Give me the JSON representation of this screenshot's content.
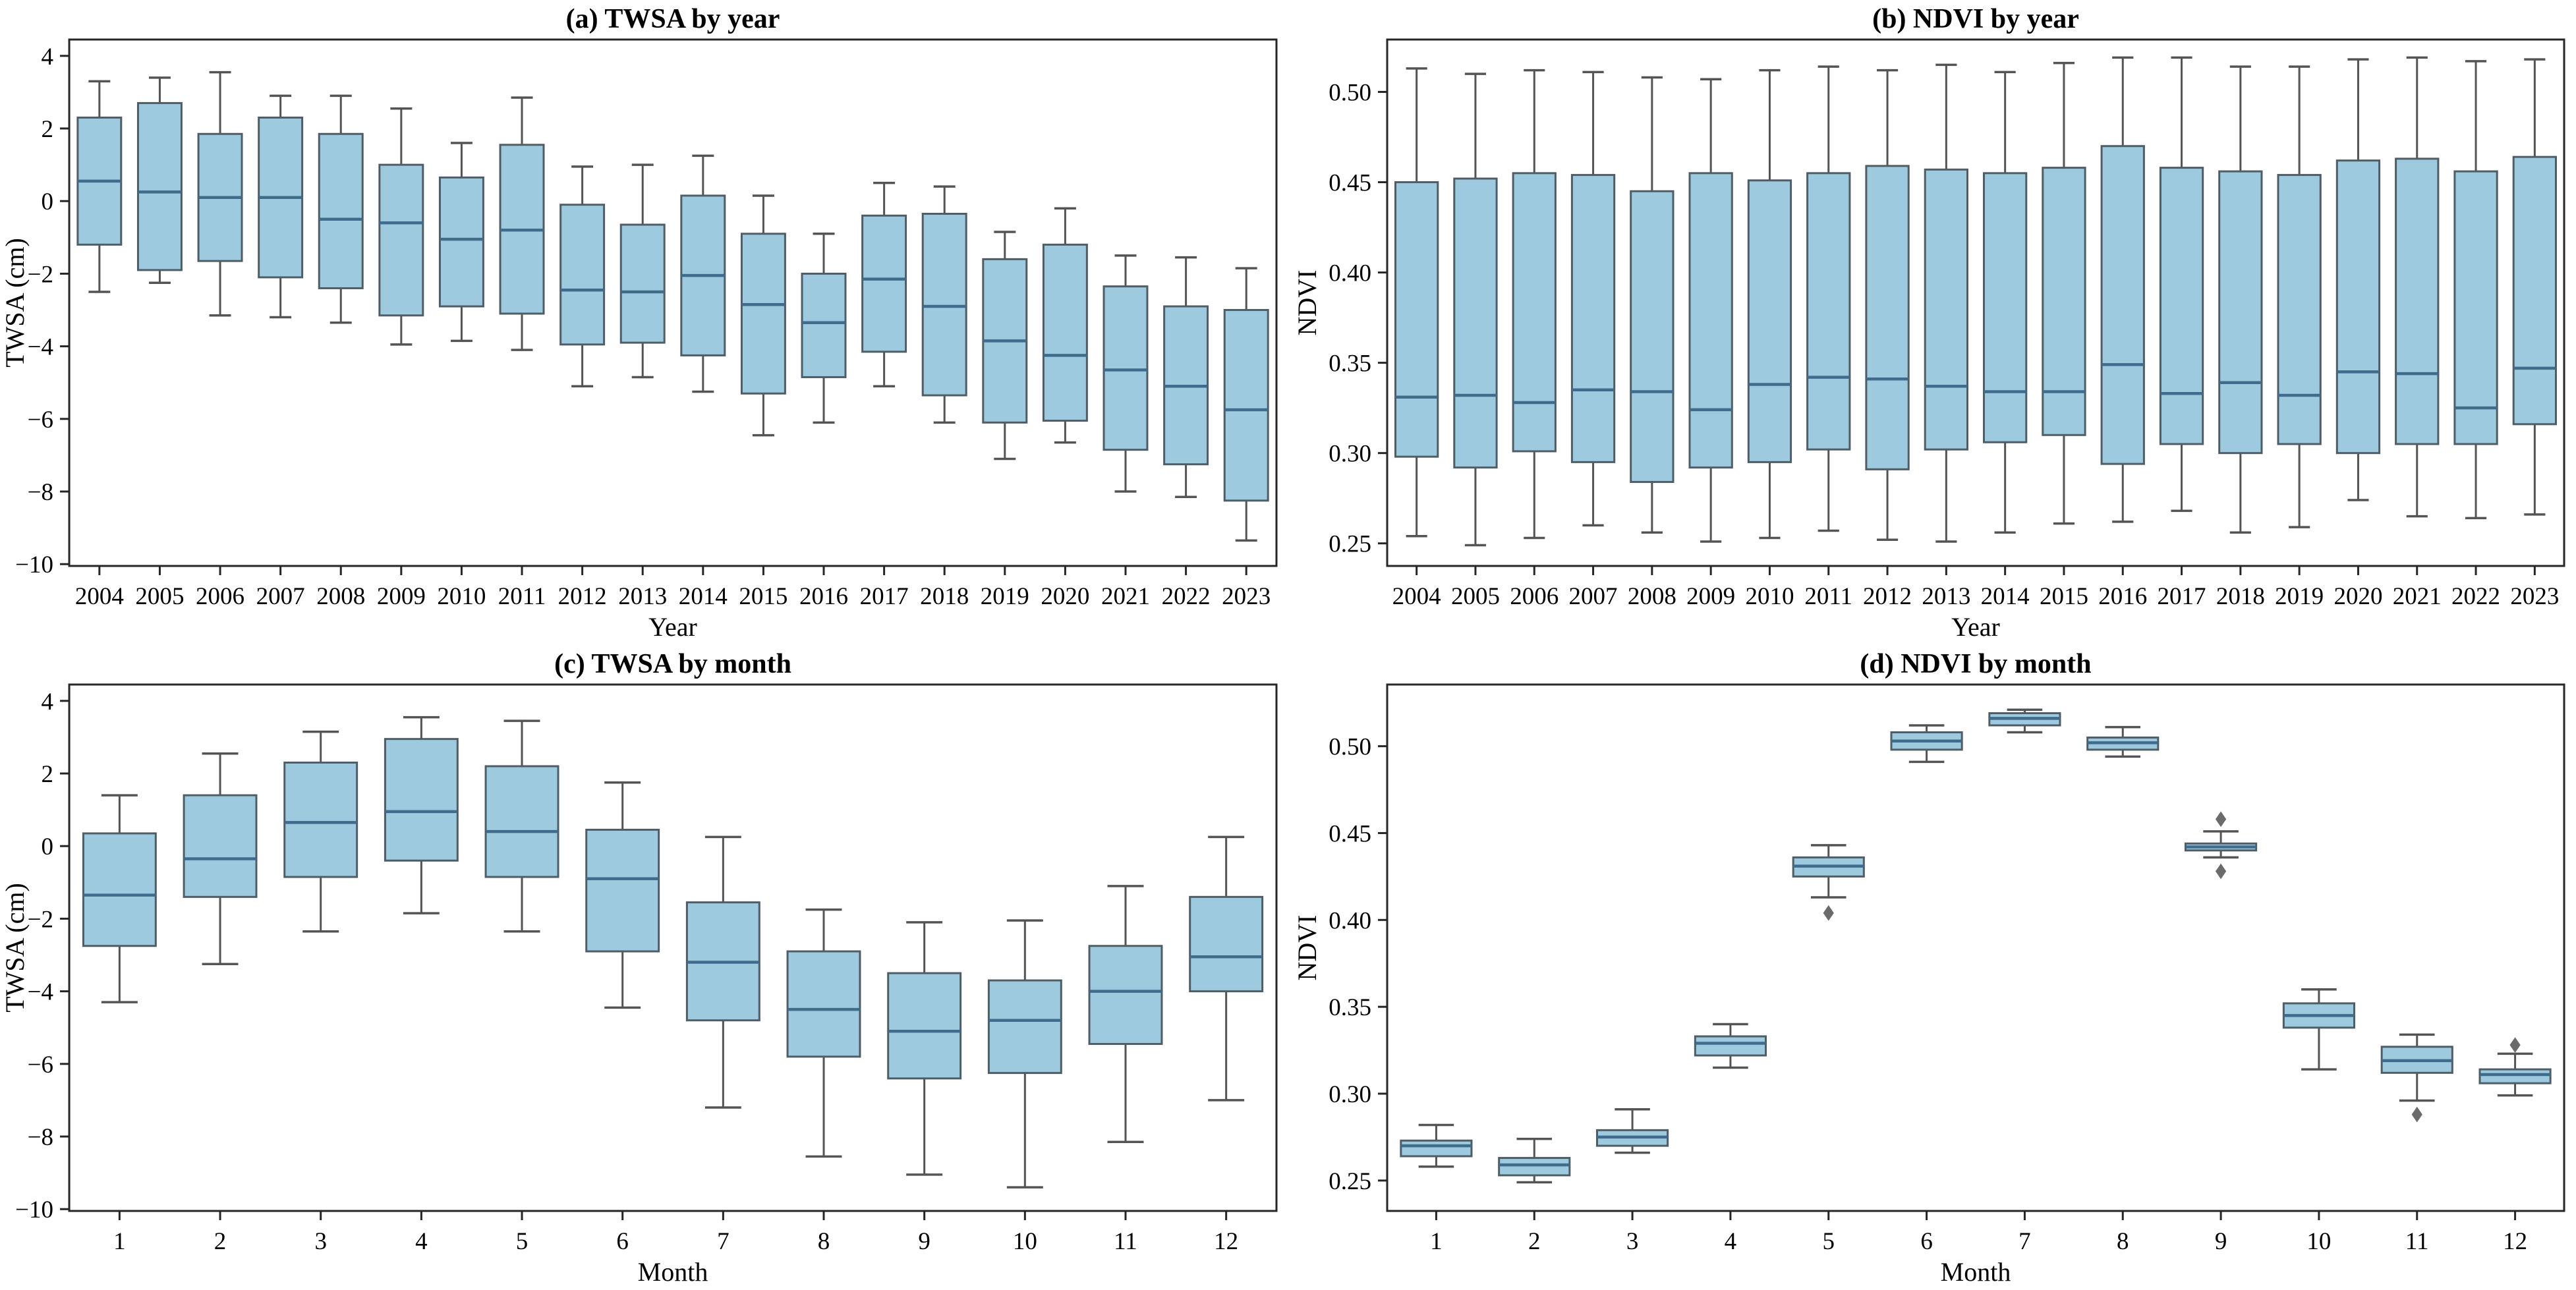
{
  "figure": {
    "background": "#ffffff"
  },
  "colors": {
    "box_fill": "#9ecadf",
    "box_edge": "#4f5d66",
    "median": "#3f6c8d",
    "whisker": "#545454",
    "flier": "#6b6b6b",
    "spine": "#262626",
    "text": "#000000"
  },
  "chart_data": [
    {
      "id": "a",
      "type": "box",
      "title": "(a) TWSA by year",
      "xlabel": "Year",
      "ylabel": "TWSA (cm)",
      "categories": [
        "2004",
        "2005",
        "2006",
        "2007",
        "2008",
        "2009",
        "2010",
        "2011",
        "2012",
        "2013",
        "2014",
        "2015",
        "2016",
        "2017",
        "2018",
        "2019",
        "2020",
        "2021",
        "2022",
        "2023"
      ],
      "ylim": [
        -10.05,
        4.45
      ],
      "yticks": [
        {
          "v": 4,
          "label": "4"
        },
        {
          "v": 2,
          "label": "2"
        },
        {
          "v": 0,
          "label": "0"
        },
        {
          "v": -2,
          "label": "−2"
        },
        {
          "v": -4,
          "label": "−4"
        },
        {
          "v": -6,
          "label": "−6"
        },
        {
          "v": -8,
          "label": "−8"
        },
        {
          "v": -10,
          "label": "−10"
        }
      ],
      "boxes": [
        {
          "whislo": -2.5,
          "q1": -1.2,
          "med": 0.55,
          "q3": 2.3,
          "whishi": 3.3,
          "fliers": []
        },
        {
          "whislo": -2.25,
          "q1": -1.9,
          "med": 0.25,
          "q3": 2.7,
          "whishi": 3.4,
          "fliers": []
        },
        {
          "whislo": -3.15,
          "q1": -1.65,
          "med": 0.1,
          "q3": 1.85,
          "whishi": 3.55,
          "fliers": []
        },
        {
          "whislo": -3.2,
          "q1": -2.1,
          "med": 0.1,
          "q3": 2.3,
          "whishi": 2.9,
          "fliers": []
        },
        {
          "whislo": -3.35,
          "q1": -2.4,
          "med": -0.5,
          "q3": 1.85,
          "whishi": 2.9,
          "fliers": []
        },
        {
          "whislo": -3.95,
          "q1": -3.15,
          "med": -0.6,
          "q3": 1.0,
          "whishi": 2.55,
          "fliers": []
        },
        {
          "whislo": -3.85,
          "q1": -2.9,
          "med": -1.05,
          "q3": 0.65,
          "whishi": 1.6,
          "fliers": []
        },
        {
          "whislo": -4.1,
          "q1": -3.1,
          "med": -0.8,
          "q3": 1.55,
          "whishi": 2.85,
          "fliers": []
        },
        {
          "whislo": -5.1,
          "q1": -3.95,
          "med": -2.45,
          "q3": -0.1,
          "whishi": 0.95,
          "fliers": []
        },
        {
          "whislo": -4.85,
          "q1": -3.9,
          "med": -2.5,
          "q3": -0.65,
          "whishi": 1.0,
          "fliers": []
        },
        {
          "whislo": -5.25,
          "q1": -4.25,
          "med": -2.05,
          "q3": 0.15,
          "whishi": 1.25,
          "fliers": []
        },
        {
          "whislo": -6.45,
          "q1": -5.3,
          "med": -2.85,
          "q3": -0.9,
          "whishi": 0.15,
          "fliers": []
        },
        {
          "whislo": -6.1,
          "q1": -4.85,
          "med": -3.35,
          "q3": -2.0,
          "whishi": -0.9,
          "fliers": []
        },
        {
          "whislo": -5.1,
          "q1": -4.15,
          "med": -2.15,
          "q3": -0.4,
          "whishi": 0.5,
          "fliers": []
        },
        {
          "whislo": -6.1,
          "q1": -5.35,
          "med": -2.9,
          "q3": -0.35,
          "whishi": 0.4,
          "fliers": []
        },
        {
          "whislo": -7.1,
          "q1": -6.1,
          "med": -3.85,
          "q3": -1.6,
          "whishi": -0.85,
          "fliers": []
        },
        {
          "whislo": -6.65,
          "q1": -6.05,
          "med": -4.25,
          "q3": -1.2,
          "whishi": -0.2,
          "fliers": []
        },
        {
          "whislo": -8.0,
          "q1": -6.85,
          "med": -4.65,
          "q3": -2.35,
          "whishi": -1.5,
          "fliers": []
        },
        {
          "whislo": -8.15,
          "q1": -7.25,
          "med": -5.1,
          "q3": -2.9,
          "whishi": -1.55,
          "fliers": []
        },
        {
          "whislo": -9.35,
          "q1": -8.25,
          "med": -5.75,
          "q3": -3.0,
          "whishi": -1.85,
          "fliers": []
        }
      ]
    },
    {
      "id": "b",
      "type": "box",
      "title": "(b) NDVI by year",
      "xlabel": "Year",
      "ylabel": "NDVI",
      "categories": [
        "2004",
        "2005",
        "2006",
        "2007",
        "2008",
        "2009",
        "2010",
        "2011",
        "2012",
        "2013",
        "2014",
        "2015",
        "2016",
        "2017",
        "2018",
        "2019",
        "2020",
        "2021",
        "2022",
        "2023"
      ],
      "ylim": [
        0.2375,
        0.529
      ],
      "yticks": [
        {
          "v": 0.5,
          "label": "0.50"
        },
        {
          "v": 0.45,
          "label": "0.45"
        },
        {
          "v": 0.4,
          "label": "0.40"
        },
        {
          "v": 0.35,
          "label": "0.35"
        },
        {
          "v": 0.3,
          "label": "0.30"
        },
        {
          "v": 0.25,
          "label": "0.25"
        }
      ],
      "boxes": [
        {
          "whislo": 0.254,
          "q1": 0.298,
          "med": 0.331,
          "q3": 0.45,
          "whishi": 0.513,
          "fliers": []
        },
        {
          "whislo": 0.249,
          "q1": 0.292,
          "med": 0.332,
          "q3": 0.452,
          "whishi": 0.51,
          "fliers": []
        },
        {
          "whislo": 0.253,
          "q1": 0.301,
          "med": 0.328,
          "q3": 0.455,
          "whishi": 0.512,
          "fliers": []
        },
        {
          "whislo": 0.26,
          "q1": 0.295,
          "med": 0.335,
          "q3": 0.454,
          "whishi": 0.511,
          "fliers": []
        },
        {
          "whislo": 0.256,
          "q1": 0.284,
          "med": 0.334,
          "q3": 0.445,
          "whishi": 0.508,
          "fliers": []
        },
        {
          "whislo": 0.251,
          "q1": 0.292,
          "med": 0.324,
          "q3": 0.455,
          "whishi": 0.507,
          "fliers": []
        },
        {
          "whislo": 0.253,
          "q1": 0.295,
          "med": 0.338,
          "q3": 0.451,
          "whishi": 0.512,
          "fliers": []
        },
        {
          "whislo": 0.257,
          "q1": 0.302,
          "med": 0.342,
          "q3": 0.455,
          "whishi": 0.514,
          "fliers": []
        },
        {
          "whislo": 0.252,
          "q1": 0.291,
          "med": 0.341,
          "q3": 0.459,
          "whishi": 0.512,
          "fliers": []
        },
        {
          "whislo": 0.251,
          "q1": 0.302,
          "med": 0.337,
          "q3": 0.457,
          "whishi": 0.515,
          "fliers": []
        },
        {
          "whislo": 0.256,
          "q1": 0.306,
          "med": 0.334,
          "q3": 0.455,
          "whishi": 0.511,
          "fliers": []
        },
        {
          "whislo": 0.261,
          "q1": 0.31,
          "med": 0.334,
          "q3": 0.458,
          "whishi": 0.516,
          "fliers": []
        },
        {
          "whislo": 0.262,
          "q1": 0.294,
          "med": 0.349,
          "q3": 0.47,
          "whishi": 0.519,
          "fliers": []
        },
        {
          "whislo": 0.268,
          "q1": 0.305,
          "med": 0.333,
          "q3": 0.458,
          "whishi": 0.519,
          "fliers": []
        },
        {
          "whislo": 0.256,
          "q1": 0.3,
          "med": 0.339,
          "q3": 0.456,
          "whishi": 0.514,
          "fliers": []
        },
        {
          "whislo": 0.259,
          "q1": 0.305,
          "med": 0.332,
          "q3": 0.454,
          "whishi": 0.514,
          "fliers": []
        },
        {
          "whislo": 0.274,
          "q1": 0.3,
          "med": 0.345,
          "q3": 0.462,
          "whishi": 0.518,
          "fliers": []
        },
        {
          "whislo": 0.265,
          "q1": 0.305,
          "med": 0.344,
          "q3": 0.463,
          "whishi": 0.519,
          "fliers": []
        },
        {
          "whislo": 0.264,
          "q1": 0.305,
          "med": 0.325,
          "q3": 0.456,
          "whishi": 0.517,
          "fliers": []
        },
        {
          "whislo": 0.266,
          "q1": 0.316,
          "med": 0.347,
          "q3": 0.464,
          "whishi": 0.518,
          "fliers": []
        }
      ]
    },
    {
      "id": "c",
      "type": "box",
      "title": "(c) TWSA by month",
      "xlabel": "Month",
      "ylabel": "TWSA (cm)",
      "categories": [
        "1",
        "2",
        "3",
        "4",
        "5",
        "6",
        "7",
        "8",
        "9",
        "10",
        "11",
        "12"
      ],
      "ylim": [
        -10.05,
        4.45
      ],
      "yticks": [
        {
          "v": 4,
          "label": "4"
        },
        {
          "v": 2,
          "label": "2"
        },
        {
          "v": 0,
          "label": "0"
        },
        {
          "v": -2,
          "label": "−2"
        },
        {
          "v": -4,
          "label": "−4"
        },
        {
          "v": -6,
          "label": "−6"
        },
        {
          "v": -8,
          "label": "−8"
        },
        {
          "v": -10,
          "label": "−10"
        }
      ],
      "boxes": [
        {
          "whislo": -4.3,
          "q1": -2.75,
          "med": -1.35,
          "q3": 0.35,
          "whishi": 1.4,
          "fliers": []
        },
        {
          "whislo": -3.25,
          "q1": -1.4,
          "med": -0.35,
          "q3": 1.4,
          "whishi": 2.55,
          "fliers": []
        },
        {
          "whislo": -2.35,
          "q1": -0.85,
          "med": 0.65,
          "q3": 2.3,
          "whishi": 3.15,
          "fliers": []
        },
        {
          "whislo": -1.85,
          "q1": -0.4,
          "med": 0.95,
          "q3": 2.95,
          "whishi": 3.55,
          "fliers": []
        },
        {
          "whislo": -2.35,
          "q1": -0.85,
          "med": 0.4,
          "q3": 2.2,
          "whishi": 3.45,
          "fliers": []
        },
        {
          "whislo": -4.45,
          "q1": -2.9,
          "med": -0.9,
          "q3": 0.45,
          "whishi": 1.75,
          "fliers": []
        },
        {
          "whislo": -7.2,
          "q1": -4.8,
          "med": -3.2,
          "q3": -1.55,
          "whishi": 0.25,
          "fliers": []
        },
        {
          "whislo": -8.55,
          "q1": -5.8,
          "med": -4.5,
          "q3": -2.9,
          "whishi": -1.75,
          "fliers": []
        },
        {
          "whislo": -9.05,
          "q1": -6.4,
          "med": -5.1,
          "q3": -3.5,
          "whishi": -2.1,
          "fliers": []
        },
        {
          "whislo": -9.4,
          "q1": -6.25,
          "med": -4.8,
          "q3": -3.7,
          "whishi": -2.05,
          "fliers": []
        },
        {
          "whislo": -8.15,
          "q1": -5.45,
          "med": -4.0,
          "q3": -2.75,
          "whishi": -1.1,
          "fliers": []
        },
        {
          "whislo": -7.0,
          "q1": -4.0,
          "med": -3.05,
          "q3": -1.4,
          "whishi": 0.25,
          "fliers": []
        }
      ]
    },
    {
      "id": "d",
      "type": "box",
      "title": "(d) NDVI by month",
      "xlabel": "Month",
      "ylabel": "NDVI",
      "categories": [
        "1",
        "2",
        "3",
        "4",
        "5",
        "6",
        "7",
        "8",
        "9",
        "10",
        "11",
        "12"
      ],
      "ylim": [
        0.2325,
        0.5355
      ],
      "yticks": [
        {
          "v": 0.5,
          "label": "0.50"
        },
        {
          "v": 0.45,
          "label": "0.45"
        },
        {
          "v": 0.4,
          "label": "0.40"
        },
        {
          "v": 0.35,
          "label": "0.35"
        },
        {
          "v": 0.3,
          "label": "0.30"
        },
        {
          "v": 0.25,
          "label": "0.25"
        }
      ],
      "boxes": [
        {
          "whislo": 0.258,
          "q1": 0.264,
          "med": 0.27,
          "q3": 0.273,
          "whishi": 0.282,
          "fliers": []
        },
        {
          "whislo": 0.249,
          "q1": 0.253,
          "med": 0.259,
          "q3": 0.263,
          "whishi": 0.274,
          "fliers": []
        },
        {
          "whislo": 0.266,
          "q1": 0.27,
          "med": 0.275,
          "q3": 0.279,
          "whishi": 0.291,
          "fliers": []
        },
        {
          "whislo": 0.315,
          "q1": 0.322,
          "med": 0.329,
          "q3": 0.333,
          "whishi": 0.34,
          "fliers": []
        },
        {
          "whislo": 0.413,
          "q1": 0.425,
          "med": 0.431,
          "q3": 0.436,
          "whishi": 0.443,
          "fliers": [
            0.404
          ]
        },
        {
          "whislo": 0.491,
          "q1": 0.498,
          "med": 0.503,
          "q3": 0.508,
          "whishi": 0.512,
          "fliers": []
        },
        {
          "whislo": 0.508,
          "q1": 0.512,
          "med": 0.516,
          "q3": 0.519,
          "whishi": 0.521,
          "fliers": []
        },
        {
          "whislo": 0.494,
          "q1": 0.498,
          "med": 0.502,
          "q3": 0.505,
          "whishi": 0.511,
          "fliers": []
        },
        {
          "whislo": 0.436,
          "q1": 0.44,
          "med": 0.442,
          "q3": 0.444,
          "whishi": 0.451,
          "fliers": [
            0.458,
            0.428
          ]
        },
        {
          "whislo": 0.314,
          "q1": 0.338,
          "med": 0.345,
          "q3": 0.352,
          "whishi": 0.36,
          "fliers": []
        },
        {
          "whislo": 0.296,
          "q1": 0.312,
          "med": 0.319,
          "q3": 0.327,
          "whishi": 0.334,
          "fliers": [
            0.288
          ]
        },
        {
          "whislo": 0.299,
          "q1": 0.306,
          "med": 0.311,
          "q3": 0.314,
          "whishi": 0.323,
          "fliers": [
            0.328
          ]
        }
      ]
    }
  ]
}
